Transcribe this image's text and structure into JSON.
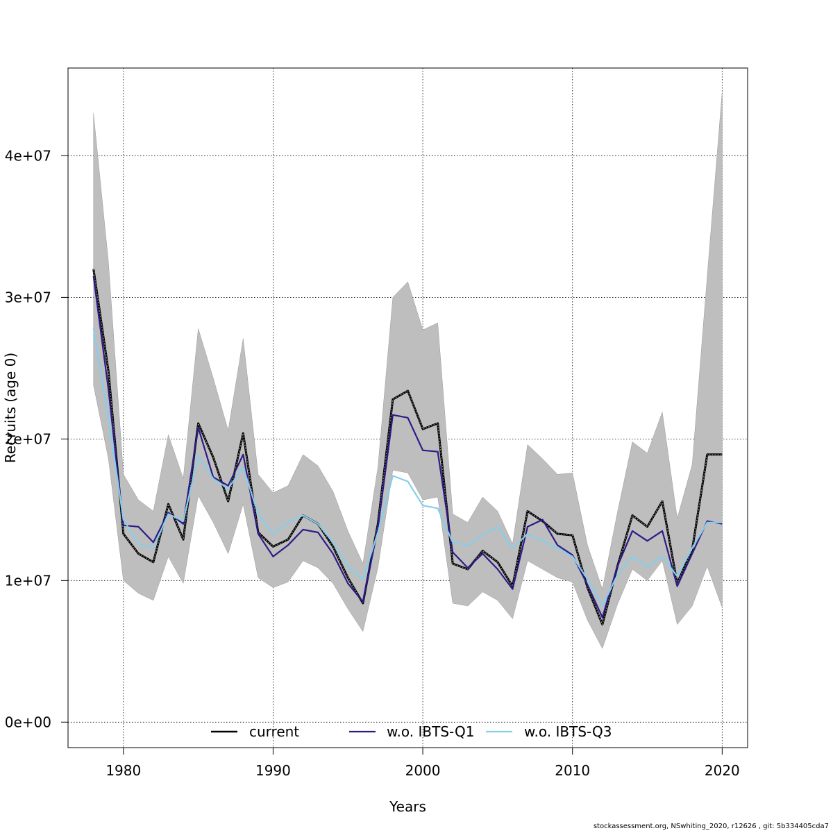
{
  "chart_data": {
    "type": "line",
    "title": "",
    "xlabel": "Years",
    "ylabel": "Recruits (age 0)",
    "xlim": [
      1976.3,
      2021.7
    ],
    "ylim": [
      -1800000,
      46200000
    ],
    "x_ticks": [
      1980,
      1990,
      2000,
      2010,
      2020
    ],
    "y_ticks": [
      0,
      10000000,
      20000000,
      30000000,
      40000000
    ],
    "x_tick_labels": [
      "1980",
      "1990",
      "2000",
      "2010",
      "2020"
    ],
    "y_tick_labels": [
      "0e+00",
      "1e+07",
      "2e+07",
      "3e+07",
      "4e+07"
    ],
    "grid": true,
    "legend_position": "bottom",
    "x": [
      1978,
      1979,
      1980,
      1981,
      1982,
      1983,
      1984,
      1985,
      1986,
      1987,
      1988,
      1989,
      1990,
      1991,
      1992,
      1993,
      1994,
      1995,
      1996,
      1997,
      1998,
      1999,
      2000,
      2001,
      2002,
      2003,
      2004,
      2005,
      2006,
      2007,
      2008,
      2009,
      2010,
      2011,
      2012,
      2013,
      2014,
      2015,
      2016,
      2017,
      2018,
      2019,
      2020
    ],
    "band": {
      "color": "#bebebe",
      "upper": [
        43000000,
        32500000,
        17500000,
        15700000,
        14900000,
        20300000,
        17200000,
        27800000,
        24300000,
        20600000,
        27100000,
        17500000,
        16200000,
        16700000,
        18900000,
        18100000,
        16300000,
        13500000,
        11200000,
        18000000,
        30000000,
        31100000,
        27700000,
        28200000,
        14700000,
        14100000,
        15900000,
        14900000,
        12600000,
        19600000,
        18600000,
        17500000,
        17600000,
        12500000,
        9400000,
        14800000,
        19800000,
        19000000,
        21900000,
        14400000,
        18200000,
        31500000,
        44500000
      ],
      "lower": [
        23800000,
        18600000,
        10000000,
        9100000,
        8600000,
        11700000,
        9800000,
        16000000,
        14100000,
        11900000,
        15400000,
        10200000,
        9500000,
        9900000,
        11400000,
        10900000,
        9800000,
        8000000,
        6400000,
        10900000,
        17800000,
        17600000,
        15700000,
        15900000,
        8400000,
        8200000,
        9200000,
        8600000,
        7300000,
        11400000,
        10800000,
        10200000,
        9900000,
        7200000,
        5200000,
        8300000,
        10800000,
        10000000,
        11400000,
        6900000,
        8200000,
        11000000,
        8100000
      ]
    },
    "series": [
      {
        "name": "current",
        "color": "#000000",
        "values": [
          32000000,
          24800000,
          13300000,
          11900000,
          11300000,
          15400000,
          12900000,
          21100000,
          18700000,
          15600000,
          20400000,
          13400000,
          12400000,
          12900000,
          14600000,
          14000000,
          12400000,
          10200000,
          8400000,
          14000000,
          22800000,
          23400000,
          20700000,
          21100000,
          11200000,
          10800000,
          12100000,
          11300000,
          9600000,
          14900000,
          14200000,
          13300000,
          13200000,
          9500000,
          6900000,
          11000000,
          14600000,
          13800000,
          15600000,
          9800000,
          12200000,
          18900000,
          18900000
        ]
      },
      {
        "name": "w.o. IBTS-Q1",
        "color": "#2e1a87",
        "values": [
          31500000,
          23500000,
          13900000,
          13800000,
          12700000,
          14800000,
          14000000,
          20800000,
          17300000,
          16700000,
          18900000,
          13300000,
          11700000,
          12500000,
          13600000,
          13400000,
          11900000,
          9800000,
          8500000,
          13700000,
          21700000,
          21500000,
          19200000,
          19100000,
          12000000,
          10900000,
          11900000,
          10800000,
          9400000,
          13800000,
          14300000,
          12500000,
          11800000,
          9700000,
          7400000,
          11000000,
          13500000,
          12800000,
          13500000,
          9600000,
          11900000,
          14200000,
          14000000
        ]
      },
      {
        "name": "w.o. IBTS-Q3",
        "color": "#87ceeb",
        "values": [
          27800000,
          21500000,
          14300000,
          12600000,
          12300000,
          14700000,
          14200000,
          18800000,
          17200000,
          16500000,
          18000000,
          14700000,
          13300000,
          14100000,
          14600000,
          14000000,
          12700000,
          11000000,
          10100000,
          13400000,
          17400000,
          17000000,
          15300000,
          15100000,
          12700000,
          12500000,
          13200000,
          13800000,
          12300000,
          13300000,
          12800000,
          12300000,
          11700000,
          10100000,
          8200000,
          10400000,
          11700000,
          11000000,
          11700000,
          10300000,
          12300000,
          14100000,
          14100000
        ]
      }
    ]
  },
  "footer_text": "stockassessment.org, NSwhiting_2020, r12626 , git: 5b334405cda7"
}
